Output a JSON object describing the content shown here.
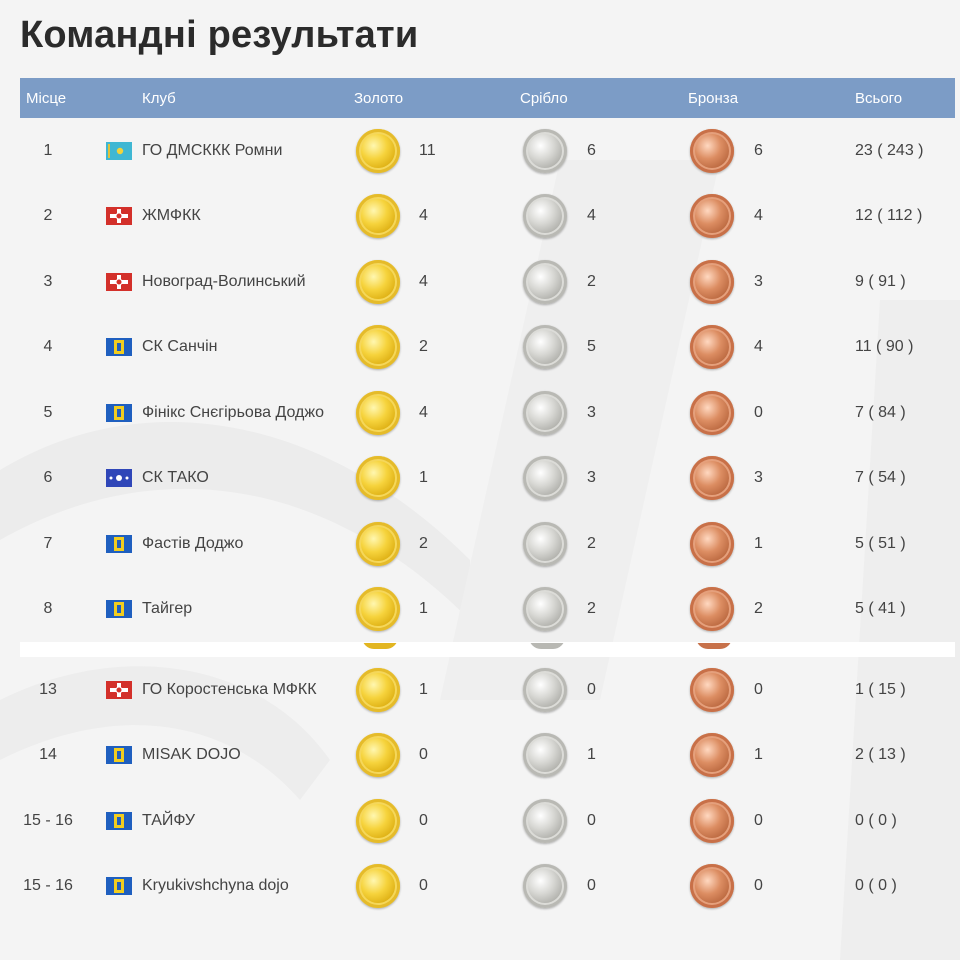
{
  "page": {
    "title": "Командні результати"
  },
  "table": {
    "headers": {
      "place": "Місце",
      "club": "Клуб",
      "gold": "Золото",
      "silver": "Срібло",
      "bronze": "Бронза",
      "total": "Всього"
    },
    "top_rows": [
      {
        "place": "1",
        "flag": "kazakhstan-flag",
        "club": "ГО ДМСККК Ромни",
        "gold": "11",
        "silver": "6",
        "bronze": "6",
        "total": "23 ( 243 )"
      },
      {
        "place": "2",
        "flag": "zhytomyr-red-flag",
        "club": "ЖМФКК",
        "gold": "4",
        "silver": "4",
        "bronze": "4",
        "total": "12 ( 112 )"
      },
      {
        "place": "3",
        "flag": "zhytomyr-red-flag",
        "club": "Новоград-Волинський",
        "gold": "4",
        "silver": "2",
        "bronze": "3",
        "total": "9 ( 91 )"
      },
      {
        "place": "4",
        "flag": "blue-yellow-flag",
        "club": "СК Санчін",
        "gold": "2",
        "silver": "5",
        "bronze": "4",
        "total": "11 ( 90 )"
      },
      {
        "place": "5",
        "flag": "blue-yellow-flag",
        "club": "Фінікс Снєгірьова Доджо",
        "gold": "4",
        "silver": "3",
        "bronze": "0",
        "total": "7 ( 84 )"
      },
      {
        "place": "6",
        "flag": "blue-white-star-flag",
        "club": "СК ТАКО",
        "gold": "1",
        "silver": "3",
        "bronze": "3",
        "total": "7 ( 54 )"
      },
      {
        "place": "7",
        "flag": "blue-yellow-flag",
        "club": "Фастів Доджо",
        "gold": "2",
        "silver": "2",
        "bronze": "1",
        "total": "5 ( 51 )"
      },
      {
        "place": "8",
        "flag": "blue-yellow-flag",
        "club": "Тайгер",
        "gold": "1",
        "silver": "2",
        "bronze": "2",
        "total": "5 ( 41 )"
      }
    ],
    "bottom_rows": [
      {
        "place": "13",
        "flag": "zhytomyr-red-flag",
        "club": "ГО Коростенська МФКК",
        "gold": "1",
        "silver": "0",
        "bronze": "0",
        "total": "1 ( 15 )"
      },
      {
        "place": "14",
        "flag": "blue-yellow-flag",
        "club": "MISAK DOJO",
        "gold": "0",
        "silver": "1",
        "bronze": "1",
        "total": "2 ( 13 )"
      },
      {
        "place": "15 - 16",
        "flag": "blue-yellow-flag",
        "club": "ТАЙФУ",
        "gold": "0",
        "silver": "0",
        "bronze": "0",
        "total": "0 ( 0 )"
      },
      {
        "place": "15 - 16",
        "flag": "blue-yellow-flag",
        "club": "Kryukivshchyna dojo",
        "gold": "0",
        "silver": "0",
        "bronze": "0",
        "total": "0 ( 0 )"
      }
    ]
  },
  "colors": {
    "header_bg": "#7c9cc6",
    "gold": "#e2b520",
    "silver": "#b8b8b3",
    "bronze": "#c7714a"
  },
  "icons": [
    "gold-medal-icon",
    "silver-medal-icon",
    "bronze-medal-icon",
    "club-flag-icon"
  ]
}
